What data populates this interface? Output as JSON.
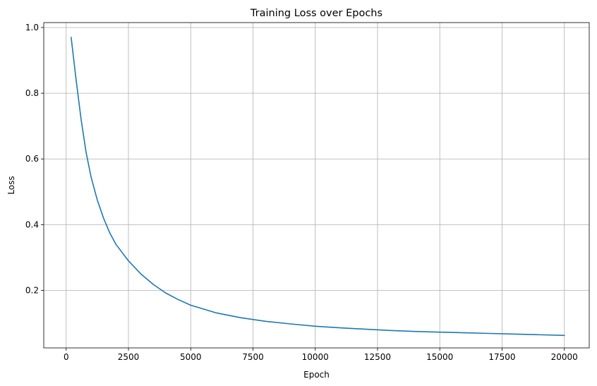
{
  "chart_data": {
    "type": "line",
    "title": "Training Loss over Epochs",
    "xlabel": "Epoch",
    "ylabel": "Loss",
    "xlim": [
      -900,
      21000
    ],
    "ylim": [
      0.025,
      1.015
    ],
    "xticks": [
      0,
      2500,
      5000,
      7500,
      10000,
      12500,
      15000,
      17500,
      20000
    ],
    "yticks": [
      0.2,
      0.4,
      0.6,
      0.8,
      1.0
    ],
    "ytick_labels": [
      "0.2",
      "0.4",
      "0.6",
      "0.8",
      "1.0"
    ],
    "grid": true,
    "colors": {
      "line": "#1f77b4"
    },
    "series": [
      {
        "x": [
          200,
          400,
          600,
          800,
          1000,
          1250,
          1500,
          1750,
          2000,
          2500,
          3000,
          3500,
          4000,
          4500,
          5000,
          6000,
          7000,
          8000,
          9000,
          10000,
          11000,
          12000,
          13000,
          14000,
          15000,
          16000,
          17000,
          18000,
          19000,
          20000
        ],
        "y": [
          0.97,
          0.84,
          0.72,
          0.62,
          0.545,
          0.475,
          0.42,
          0.375,
          0.34,
          0.29,
          0.25,
          0.218,
          0.192,
          0.172,
          0.155,
          0.132,
          0.117,
          0.106,
          0.098,
          0.091,
          0.086,
          0.082,
          0.078,
          0.075,
          0.073,
          0.071,
          0.069,
          0.067,
          0.065,
          0.063
        ]
      }
    ]
  }
}
